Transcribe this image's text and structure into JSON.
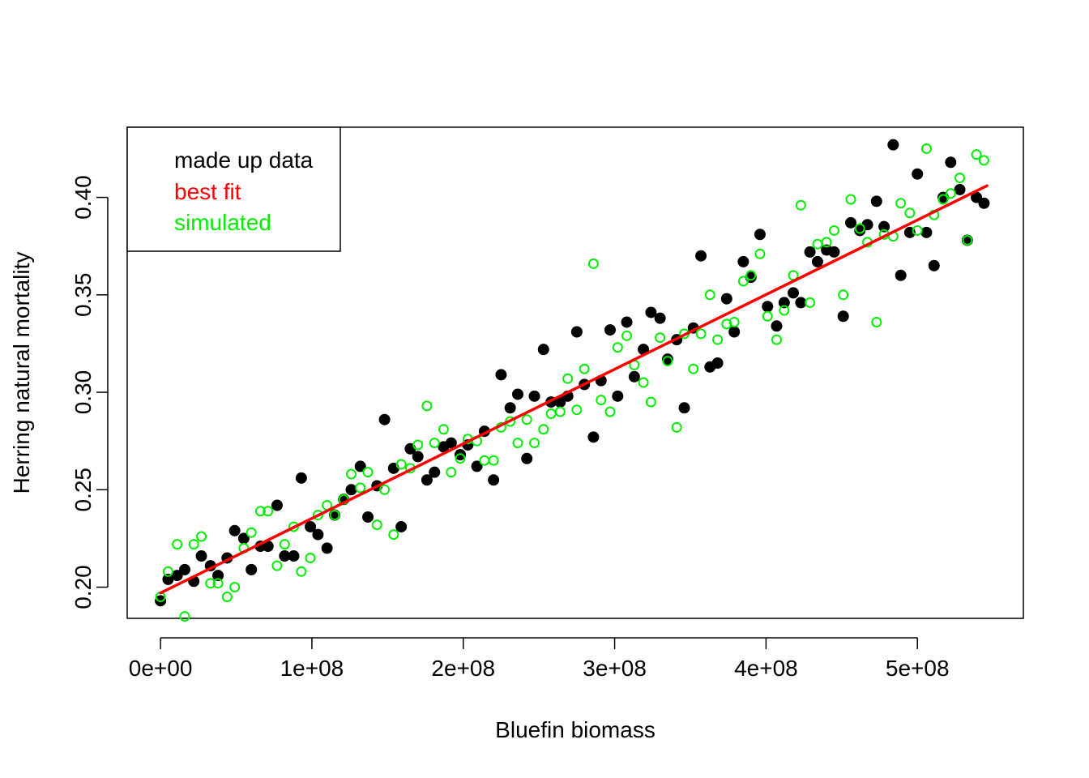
{
  "chart_data": {
    "type": "scatter",
    "title": "",
    "xlabel": "Bluefin biomass",
    "ylabel": "Herring natural mortality",
    "xlim": [
      -22000000,
      570000000
    ],
    "ylim": [
      0.184,
      0.436
    ],
    "x_ticks": [
      0,
      100000000,
      200000000,
      300000000,
      400000000,
      500000000
    ],
    "x_tick_labels": [
      "0e+00",
      "1e+08",
      "2e+08",
      "3e+08",
      "4e+08",
      "5e+08"
    ],
    "y_ticks": [
      0.2,
      0.25,
      0.3,
      0.35,
      0.4
    ],
    "y_tick_labels": [
      "0.20",
      "0.25",
      "0.30",
      "0.35",
      "0.40"
    ],
    "grid": false,
    "legend": {
      "position": "top-left",
      "entries": [
        {
          "label": "made up data",
          "color": "#000000"
        },
        {
          "label": "best fit",
          "color": "#ff0000"
        },
        {
          "label": "simulated",
          "color": "#00ee00"
        }
      ]
    },
    "series": [
      {
        "name": "made up data",
        "color": "#000000",
        "marker": "filled-circle",
        "points": [
          [
            0,
            0.193
          ],
          [
            5000000,
            0.204
          ],
          [
            11000000,
            0.206
          ],
          [
            16000000,
            0.209
          ],
          [
            22000000,
            0.203
          ],
          [
            27000000,
            0.216
          ],
          [
            33000000,
            0.211
          ],
          [
            38000000,
            0.206
          ],
          [
            44000000,
            0.215
          ],
          [
            49000000,
            0.229
          ],
          [
            55000000,
            0.225
          ],
          [
            60000000,
            0.209
          ],
          [
            66000000,
            0.221
          ],
          [
            71000000,
            0.221
          ],
          [
            77000000,
            0.242
          ],
          [
            82000000,
            0.216
          ],
          [
            88000000,
            0.216
          ],
          [
            93000000,
            0.256
          ],
          [
            99000000,
            0.231
          ],
          [
            104000000,
            0.227
          ],
          [
            110000000,
            0.22
          ],
          [
            115000000,
            0.237
          ],
          [
            121000000,
            0.245
          ],
          [
            126000000,
            0.25
          ],
          [
            132000000,
            0.262
          ],
          [
            137000000,
            0.236
          ],
          [
            143000000,
            0.252
          ],
          [
            148000000,
            0.286
          ],
          [
            154000000,
            0.261
          ],
          [
            159000000,
            0.231
          ],
          [
            165000000,
            0.271
          ],
          [
            170000000,
            0.267
          ],
          [
            176000000,
            0.255
          ],
          [
            181000000,
            0.259
          ],
          [
            187000000,
            0.272
          ],
          [
            192000000,
            0.274
          ],
          [
            198000000,
            0.268
          ],
          [
            203000000,
            0.273
          ],
          [
            209000000,
            0.262
          ],
          [
            214000000,
            0.28
          ],
          [
            220000000,
            0.255
          ],
          [
            225000000,
            0.309
          ],
          [
            231000000,
            0.292
          ],
          [
            236000000,
            0.299
          ],
          [
            242000000,
            0.266
          ],
          [
            247000000,
            0.298
          ],
          [
            253000000,
            0.322
          ],
          [
            258000000,
            0.295
          ],
          [
            264000000,
            0.295
          ],
          [
            269000000,
            0.298
          ],
          [
            275000000,
            0.331
          ],
          [
            280000000,
            0.304
          ],
          [
            286000000,
            0.277
          ],
          [
            291000000,
            0.306
          ],
          [
            297000000,
            0.332
          ],
          [
            302000000,
            0.298
          ],
          [
            308000000,
            0.336
          ],
          [
            313000000,
            0.308
          ],
          [
            319000000,
            0.322
          ],
          [
            324000000,
            0.341
          ],
          [
            330000000,
            0.338
          ],
          [
            335000000,
            0.317
          ],
          [
            341000000,
            0.327
          ],
          [
            346000000,
            0.292
          ],
          [
            352000000,
            0.333
          ],
          [
            357000000,
            0.37
          ],
          [
            363000000,
            0.313
          ],
          [
            368000000,
            0.315
          ],
          [
            374000000,
            0.348
          ],
          [
            379000000,
            0.331
          ],
          [
            385000000,
            0.367
          ],
          [
            390000000,
            0.359
          ],
          [
            396000000,
            0.381
          ],
          [
            401000000,
            0.344
          ],
          [
            407000000,
            0.334
          ],
          [
            412000000,
            0.346
          ],
          [
            418000000,
            0.351
          ],
          [
            423000000,
            0.346
          ],
          [
            429000000,
            0.372
          ],
          [
            434000000,
            0.367
          ],
          [
            440000000,
            0.373
          ],
          [
            445000000,
            0.372
          ],
          [
            451000000,
            0.339
          ],
          [
            456000000,
            0.387
          ],
          [
            462000000,
            0.383
          ],
          [
            467000000,
            0.386
          ],
          [
            473000000,
            0.398
          ],
          [
            478000000,
            0.385
          ],
          [
            484000000,
            0.427
          ],
          [
            489000000,
            0.36
          ],
          [
            495000000,
            0.382
          ],
          [
            500000000,
            0.412
          ],
          [
            506000000,
            0.382
          ],
          [
            511000000,
            0.365
          ],
          [
            517000000,
            0.4
          ],
          [
            522000000,
            0.418
          ],
          [
            528000000,
            0.404
          ],
          [
            533000000,
            0.378
          ],
          [
            539000000,
            0.4
          ],
          [
            544000000,
            0.397
          ]
        ]
      },
      {
        "name": "best fit",
        "color": "#ff0000",
        "marker": "line",
        "points": [
          [
            0,
            0.197
          ],
          [
            546000000,
            0.406
          ]
        ]
      },
      {
        "name": "simulated",
        "color": "#00ee00",
        "marker": "open-circle",
        "points": [
          [
            0,
            0.195
          ],
          [
            5000000,
            0.208
          ],
          [
            11000000,
            0.222
          ],
          [
            16000000,
            0.185
          ],
          [
            22000000,
            0.222
          ],
          [
            27000000,
            0.226
          ],
          [
            33000000,
            0.202
          ],
          [
            38000000,
            0.202
          ],
          [
            44000000,
            0.195
          ],
          [
            49000000,
            0.2
          ],
          [
            55000000,
            0.22
          ],
          [
            60000000,
            0.228
          ],
          [
            66000000,
            0.239
          ],
          [
            71000000,
            0.239
          ],
          [
            77000000,
            0.211
          ],
          [
            82000000,
            0.222
          ],
          [
            88000000,
            0.231
          ],
          [
            93000000,
            0.208
          ],
          [
            99000000,
            0.215
          ],
          [
            104000000,
            0.237
          ],
          [
            110000000,
            0.242
          ],
          [
            115000000,
            0.237
          ],
          [
            121000000,
            0.245
          ],
          [
            126000000,
            0.258
          ],
          [
            132000000,
            0.251
          ],
          [
            137000000,
            0.259
          ],
          [
            143000000,
            0.232
          ],
          [
            148000000,
            0.25
          ],
          [
            154000000,
            0.227
          ],
          [
            159000000,
            0.263
          ],
          [
            165000000,
            0.261
          ],
          [
            170000000,
            0.273
          ],
          [
            176000000,
            0.293
          ],
          [
            181000000,
            0.274
          ],
          [
            187000000,
            0.281
          ],
          [
            192000000,
            0.259
          ],
          [
            198000000,
            0.266
          ],
          [
            203000000,
            0.276
          ],
          [
            209000000,
            0.275
          ],
          [
            214000000,
            0.265
          ],
          [
            220000000,
            0.265
          ],
          [
            225000000,
            0.282
          ],
          [
            231000000,
            0.285
          ],
          [
            236000000,
            0.274
          ],
          [
            242000000,
            0.286
          ],
          [
            247000000,
            0.274
          ],
          [
            253000000,
            0.281
          ],
          [
            258000000,
            0.289
          ],
          [
            264000000,
            0.29
          ],
          [
            269000000,
            0.307
          ],
          [
            275000000,
            0.291
          ],
          [
            280000000,
            0.312
          ],
          [
            286000000,
            0.366
          ],
          [
            291000000,
            0.296
          ],
          [
            297000000,
            0.29
          ],
          [
            302000000,
            0.323
          ],
          [
            308000000,
            0.329
          ],
          [
            313000000,
            0.314
          ],
          [
            319000000,
            0.305
          ],
          [
            324000000,
            0.295
          ],
          [
            330000000,
            0.328
          ],
          [
            335000000,
            0.316
          ],
          [
            341000000,
            0.282
          ],
          [
            346000000,
            0.33
          ],
          [
            352000000,
            0.312
          ],
          [
            357000000,
            0.33
          ],
          [
            363000000,
            0.35
          ],
          [
            368000000,
            0.327
          ],
          [
            374000000,
            0.335
          ],
          [
            379000000,
            0.336
          ],
          [
            385000000,
            0.357
          ],
          [
            390000000,
            0.36
          ],
          [
            396000000,
            0.371
          ],
          [
            401000000,
            0.339
          ],
          [
            407000000,
            0.327
          ],
          [
            412000000,
            0.342
          ],
          [
            418000000,
            0.36
          ],
          [
            423000000,
            0.396
          ],
          [
            429000000,
            0.346
          ],
          [
            434000000,
            0.376
          ],
          [
            440000000,
            0.377
          ],
          [
            445000000,
            0.383
          ],
          [
            451000000,
            0.35
          ],
          [
            456000000,
            0.399
          ],
          [
            462000000,
            0.384
          ],
          [
            467000000,
            0.377
          ],
          [
            473000000,
            0.336
          ],
          [
            478000000,
            0.381
          ],
          [
            484000000,
            0.38
          ],
          [
            489000000,
            0.397
          ],
          [
            495000000,
            0.392
          ],
          [
            500000000,
            0.383
          ],
          [
            506000000,
            0.425
          ],
          [
            511000000,
            0.391
          ],
          [
            517000000,
            0.399
          ],
          [
            522000000,
            0.402
          ],
          [
            528000000,
            0.41
          ],
          [
            533000000,
            0.378
          ],
          [
            539000000,
            0.422
          ],
          [
            544000000,
            0.419
          ]
        ]
      }
    ]
  }
}
